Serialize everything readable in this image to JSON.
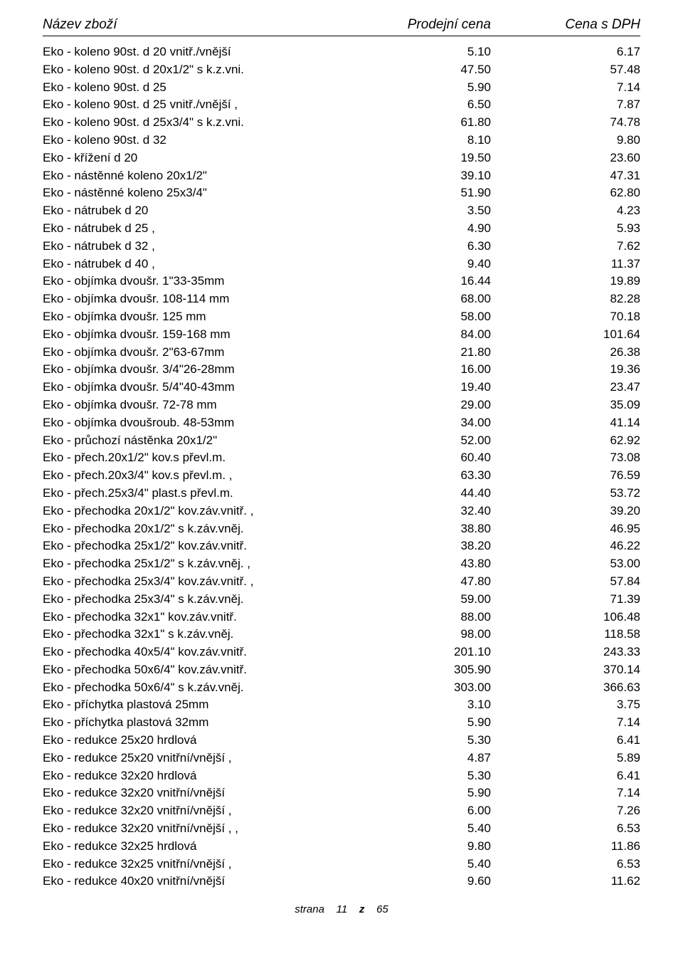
{
  "header": {
    "name": "Název zboží",
    "price1": "Prodejní cena",
    "price2": "Cena s DPH"
  },
  "rows": [
    {
      "name": "Eko - koleno 90st. d 20 vnitř./vnější",
      "p1": "5.10",
      "p2": "6.17"
    },
    {
      "name": "Eko - koleno 90st. d 20x1/2\" s k.z.vni.",
      "p1": "47.50",
      "p2": "57.48"
    },
    {
      "name": "Eko - koleno 90st. d 25",
      "p1": "5.90",
      "p2": "7.14"
    },
    {
      "name": "Eko - koleno 90st. d 25 vnitř./vnější   ,",
      "p1": "6.50",
      "p2": "7.87"
    },
    {
      "name": "Eko - koleno 90st. d 25x3/4\" s k.z.vni.",
      "p1": "61.80",
      "p2": "74.78"
    },
    {
      "name": "Eko - koleno 90st. d 32",
      "p1": "8.10",
      "p2": "9.80"
    },
    {
      "name": "Eko - křížení d 20",
      "p1": "19.50",
      "p2": "23.60"
    },
    {
      "name": "Eko - nástěnné koleno 20x1/2\"",
      "p1": "39.10",
      "p2": "47.31"
    },
    {
      "name": "Eko - nástěnné koleno 25x3/4\"",
      "p1": "51.90",
      "p2": "62.80"
    },
    {
      "name": "Eko - nátrubek d 20",
      "p1": "3.50",
      "p2": "4.23"
    },
    {
      "name": "Eko - nátrubek d 25               ,",
      "p1": "4.90",
      "p2": "5.93"
    },
    {
      "name": "Eko - nátrubek d 32               ,",
      "p1": "6.30",
      "p2": "7.62"
    },
    {
      "name": "Eko - nátrubek d 40               ,",
      "p1": "9.40",
      "p2": "11.37"
    },
    {
      "name": "Eko - objímka dvoušr. 1\"33-35mm",
      "p1": "16.44",
      "p2": "19.89"
    },
    {
      "name": "Eko - objímka dvoušr. 108-114 mm",
      "p1": "68.00",
      "p2": "82.28"
    },
    {
      "name": "Eko - objímka dvoušr. 125 mm",
      "p1": "58.00",
      "p2": "70.18"
    },
    {
      "name": "Eko - objímka dvoušr. 159-168 mm",
      "p1": "84.00",
      "p2": "101.64"
    },
    {
      "name": "Eko - objímka dvoušr. 2\"63-67mm",
      "p1": "21.80",
      "p2": "26.38"
    },
    {
      "name": "Eko - objímka dvoušr. 3/4\"26-28mm",
      "p1": "16.00",
      "p2": "19.36"
    },
    {
      "name": "Eko - objímka dvoušr. 5/4\"40-43mm",
      "p1": "19.40",
      "p2": "23.47"
    },
    {
      "name": "Eko - objímka dvoušr. 72-78 mm",
      "p1": "29.00",
      "p2": "35.09"
    },
    {
      "name": "Eko - objímka dvoušroub. 48-53mm",
      "p1": "34.00",
      "p2": "41.14"
    },
    {
      "name": "Eko - průchozí nástěnka 20x1/2\"",
      "p1": "52.00",
      "p2": "62.92"
    },
    {
      "name": "Eko - přech.20x1/2\" kov.s převl.m.",
      "p1": "60.40",
      "p2": "73.08"
    },
    {
      "name": "Eko - přech.20x3/4\" kov.s převl.m.      ,",
      "p1": "63.30",
      "p2": "76.59"
    },
    {
      "name": "Eko - přech.25x3/4\" plast.s převl.m.",
      "p1": "44.40",
      "p2": "53.72"
    },
    {
      "name": "Eko - přechodka 20x1/2\" kov.záv.vnitř.   ,",
      "p1": "32.40",
      "p2": "39.20"
    },
    {
      "name": "Eko - přechodka 20x1/2\" s k.záv.vněj.",
      "p1": "38.80",
      "p2": "46.95"
    },
    {
      "name": "Eko - přechodka 25x1/2\" kov.záv.vnitř.",
      "p1": "38.20",
      "p2": "46.22"
    },
    {
      "name": "Eko - přechodka 25x1/2\" s k.záv.vněj.    ,",
      "p1": "43.80",
      "p2": "53.00"
    },
    {
      "name": "Eko - přechodka 25x3/4\" kov.záv.vnitř.   ,",
      "p1": "47.80",
      "p2": "57.84"
    },
    {
      "name": "Eko - přechodka 25x3/4\" s k.záv.vněj.",
      "p1": "59.00",
      "p2": "71.39"
    },
    {
      "name": "Eko - přechodka 32x1\"   kov.záv.vnitř.",
      "p1": "88.00",
      "p2": "106.48"
    },
    {
      "name": "Eko - přechodka 32x1\" s k.záv.vněj.",
      "p1": "98.00",
      "p2": "118.58"
    },
    {
      "name": "Eko - přechodka 40x5/4\" kov.záv.vnitř.",
      "p1": "201.10",
      "p2": "243.33"
    },
    {
      "name": "Eko - přechodka 50x6/4\" kov.záv.vnitř.",
      "p1": "305.90",
      "p2": "370.14"
    },
    {
      "name": "Eko - přechodka 50x6/4\" s k.záv.vněj.",
      "p1": "303.00",
      "p2": "366.63"
    },
    {
      "name": "Eko - příchytka plastová 25mm",
      "p1": "3.10",
      "p2": "3.75"
    },
    {
      "name": "Eko - příchytka plastová 32mm",
      "p1": "5.90",
      "p2": "7.14"
    },
    {
      "name": "Eko - redukce 25x20 hrdlová",
      "p1": "5.30",
      "p2": "6.41"
    },
    {
      "name": "Eko - redukce 25x20 vnitřní/vnější       ,",
      "p1": "4.87",
      "p2": "5.89"
    },
    {
      "name": "Eko - redukce 32x20 hrdlová",
      "p1": "5.30",
      "p2": "6.41"
    },
    {
      "name": "Eko - redukce 32x20 vnitřní/vnější",
      "p1": "5.90",
      "p2": "7.14"
    },
    {
      "name": "Eko - redukce 32x20 vnitřní/vnější       ,",
      "p1": "6.00",
      "p2": "7.26"
    },
    {
      "name": "Eko - redukce 32x20 vnitřní/vnější       , ,",
      "p1": "5.40",
      "p2": "6.53"
    },
    {
      "name": "Eko - redukce 32x25 hrdlová",
      "p1": "9.80",
      "p2": "11.86"
    },
    {
      "name": "Eko - redukce 32x25 vnitřní/vnější       ,",
      "p1": "5.40",
      "p2": "6.53"
    },
    {
      "name": "Eko - redukce 40x20 vnitřní/vnější",
      "p1": "9.60",
      "p2": "11.62"
    }
  ],
  "footer": {
    "label": "strana",
    "page": "11",
    "sep": "z",
    "total": "65"
  }
}
